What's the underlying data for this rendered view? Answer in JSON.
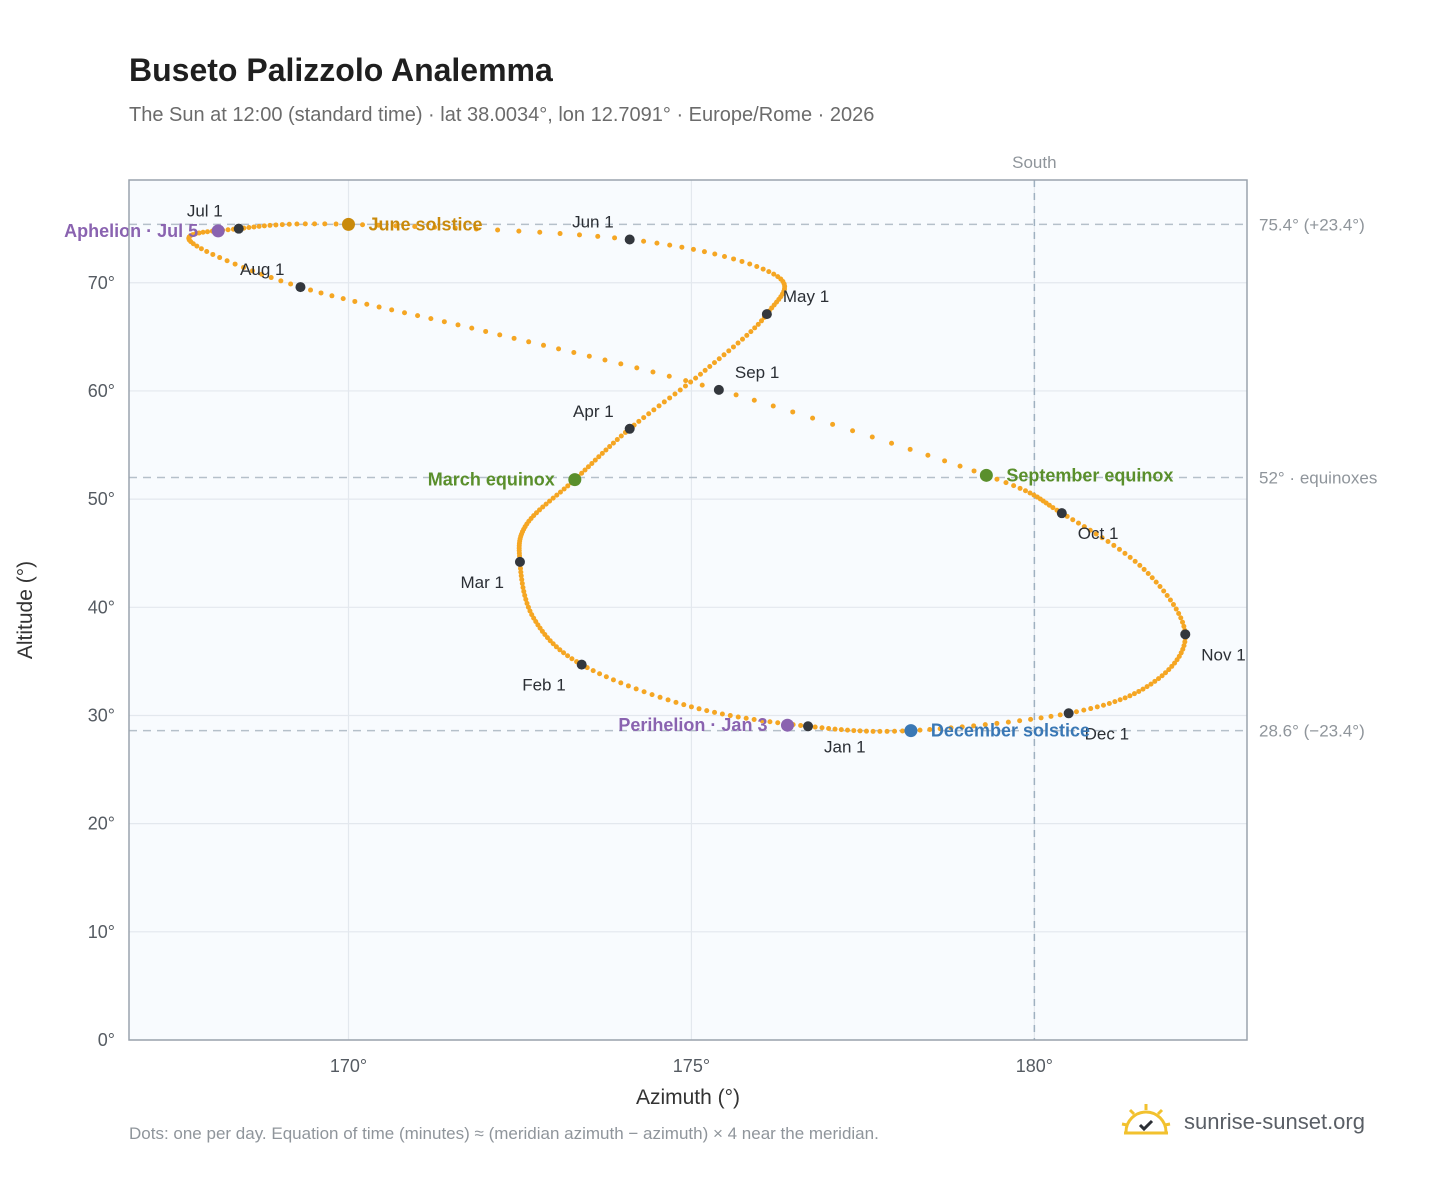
{
  "title": "Buseto Palizzolo Analemma",
  "subtitle": "The Sun at 12:00 (standard time) · lat 38.0034°, lon 12.7091° · Europe/Rome · 2026",
  "footnote": "Dots: one per day. Equation of time (minutes) ≈ (meridian azimuth − azimuth) × 4 near the meridian.",
  "brand": {
    "text": "sunrise-sunset.org",
    "icon": "sun-check-logo-icon"
  },
  "chart_data": {
    "type": "scatter",
    "title": "Buseto Palizzolo Analemma",
    "xlabel": "Azimuth (°)",
    "ylabel": "Altitude (°)",
    "xlim": [
      166.8,
      183.1
    ],
    "ylim": [
      0,
      79.5
    ],
    "x_ticks": [
      170,
      175,
      180
    ],
    "x_tick_labels": [
      "170°",
      "175°",
      "180°"
    ],
    "y_ticks": [
      0,
      10,
      20,
      30,
      40,
      50,
      60,
      70
    ],
    "y_tick_labels": [
      "0°",
      "10°",
      "20°",
      "30°",
      "40°",
      "50°",
      "60°",
      "70°"
    ],
    "grid": true,
    "path_color": "#f5a623",
    "meridian": {
      "azimuth": 180,
      "label": "South"
    },
    "reference_lines": [
      {
        "altitude": 75.4,
        "label": "75.4° (+23.4°)"
      },
      {
        "altitude": 52,
        "label": "52° · equinoxes"
      },
      {
        "altitude": 28.6,
        "label": "28.6° (−23.4°)"
      }
    ],
    "daily_path": [
      {
        "date": "Jan 1",
        "azimuth": 176.7,
        "altitude": 29.0
      },
      {
        "date": "Jan 15",
        "azimuth": 175.0,
        "altitude": 30.8
      },
      {
        "date": "Feb 1",
        "azimuth": 173.4,
        "altitude": 34.7
      },
      {
        "date": "Feb 15",
        "azimuth": 172.7,
        "altitude": 39.0
      },
      {
        "date": "Mar 1",
        "azimuth": 172.5,
        "altitude": 44.2
      },
      {
        "date": "Mar 10",
        "azimuth": 172.6,
        "altitude": 47.7
      },
      {
        "date": "Mar 20",
        "azimuth": 173.3,
        "altitude": 51.8
      },
      {
        "date": "Apr 1",
        "azimuth": 174.1,
        "altitude": 56.5
      },
      {
        "date": "Apr 15",
        "azimuth": 175.2,
        "altitude": 61.9
      },
      {
        "date": "May 1",
        "azimuth": 176.1,
        "altitude": 67.1
      },
      {
        "date": "May 15",
        "azimuth": 176.2,
        "altitude": 70.8
      },
      {
        "date": "Jun 1",
        "azimuth": 174.1,
        "altitude": 74.0
      },
      {
        "date": "Jun 21",
        "azimuth": 170.0,
        "altitude": 75.4
      },
      {
        "date": "Jul 1",
        "azimuth": 168.4,
        "altitude": 75.0
      },
      {
        "date": "Jul 15",
        "azimuth": 167.7,
        "altitude": 73.8
      },
      {
        "date": "Aug 1",
        "azimuth": 169.3,
        "altitude": 69.6
      },
      {
        "date": "Aug 15",
        "azimuth": 172.0,
        "altitude": 65.5
      },
      {
        "date": "Sep 1",
        "azimuth": 175.4,
        "altitude": 60.1
      },
      {
        "date": "Sep 23",
        "azimuth": 179.3,
        "altitude": 52.2
      },
      {
        "date": "Oct 1",
        "azimuth": 180.4,
        "altitude": 48.7
      },
      {
        "date": "Oct 15",
        "azimuth": 181.6,
        "altitude": 43.5
      },
      {
        "date": "Nov 1",
        "azimuth": 182.2,
        "altitude": 37.5
      },
      {
        "date": "Nov 15",
        "azimuth": 181.7,
        "altitude": 32.9
      },
      {
        "date": "Dec 1",
        "azimuth": 180.5,
        "altitude": 30.2
      },
      {
        "date": "Dec 21",
        "azimuth": 178.2,
        "altitude": 28.6
      },
      {
        "date": "Jan 1",
        "azimuth": 176.7,
        "altitude": 29.0
      }
    ],
    "month_markers": [
      {
        "label": "Jan 1",
        "azimuth": 176.7,
        "altitude": 29.0,
        "anchor": "below-right"
      },
      {
        "label": "Feb 1",
        "azimuth": 173.4,
        "altitude": 34.7,
        "anchor": "below-left"
      },
      {
        "label": "Mar 1",
        "azimuth": 172.5,
        "altitude": 44.2,
        "anchor": "below-left"
      },
      {
        "label": "Apr 1",
        "azimuth": 174.1,
        "altitude": 56.5,
        "anchor": "above-left"
      },
      {
        "label": "May 1",
        "azimuth": 176.1,
        "altitude": 67.1,
        "anchor": "above-right"
      },
      {
        "label": "Jun 1",
        "azimuth": 174.1,
        "altitude": 74.0,
        "anchor": "above-left"
      },
      {
        "label": "Jul 1",
        "azimuth": 168.4,
        "altitude": 75.0,
        "anchor": "above-left"
      },
      {
        "label": "Aug 1",
        "azimuth": 169.3,
        "altitude": 69.6,
        "anchor": "above-left"
      },
      {
        "label": "Sep 1",
        "azimuth": 175.4,
        "altitude": 60.1,
        "anchor": "above-right"
      },
      {
        "label": "Oct 1",
        "azimuth": 180.4,
        "altitude": 48.7,
        "anchor": "below-right"
      },
      {
        "label": "Nov 1",
        "azimuth": 182.2,
        "altitude": 37.5,
        "anchor": "below-right"
      },
      {
        "label": "Dec 1",
        "azimuth": 180.5,
        "altitude": 30.2,
        "anchor": "below-right"
      }
    ],
    "events": [
      {
        "label": "June solstice",
        "azimuth": 170.0,
        "altitude": 75.4,
        "color": "#c98a0c",
        "side": "right"
      },
      {
        "label": "March equinox",
        "azimuth": 173.3,
        "altitude": 51.8,
        "color": "#5a8f2c",
        "side": "left"
      },
      {
        "label": "September equinox",
        "azimuth": 179.3,
        "altitude": 52.2,
        "color": "#5a8f2c",
        "side": "right"
      },
      {
        "label": "December solstice",
        "azimuth": 178.2,
        "altitude": 28.6,
        "color": "#3a78b5",
        "side": "right"
      },
      {
        "label": "Aphelion · Jul 5",
        "azimuth": 168.1,
        "altitude": 74.8,
        "color": "#8a63b0",
        "side": "left"
      },
      {
        "label": "Perihelion · Jan 3",
        "azimuth": 176.4,
        "altitude": 29.1,
        "color": "#8a63b0",
        "side": "left"
      }
    ]
  }
}
